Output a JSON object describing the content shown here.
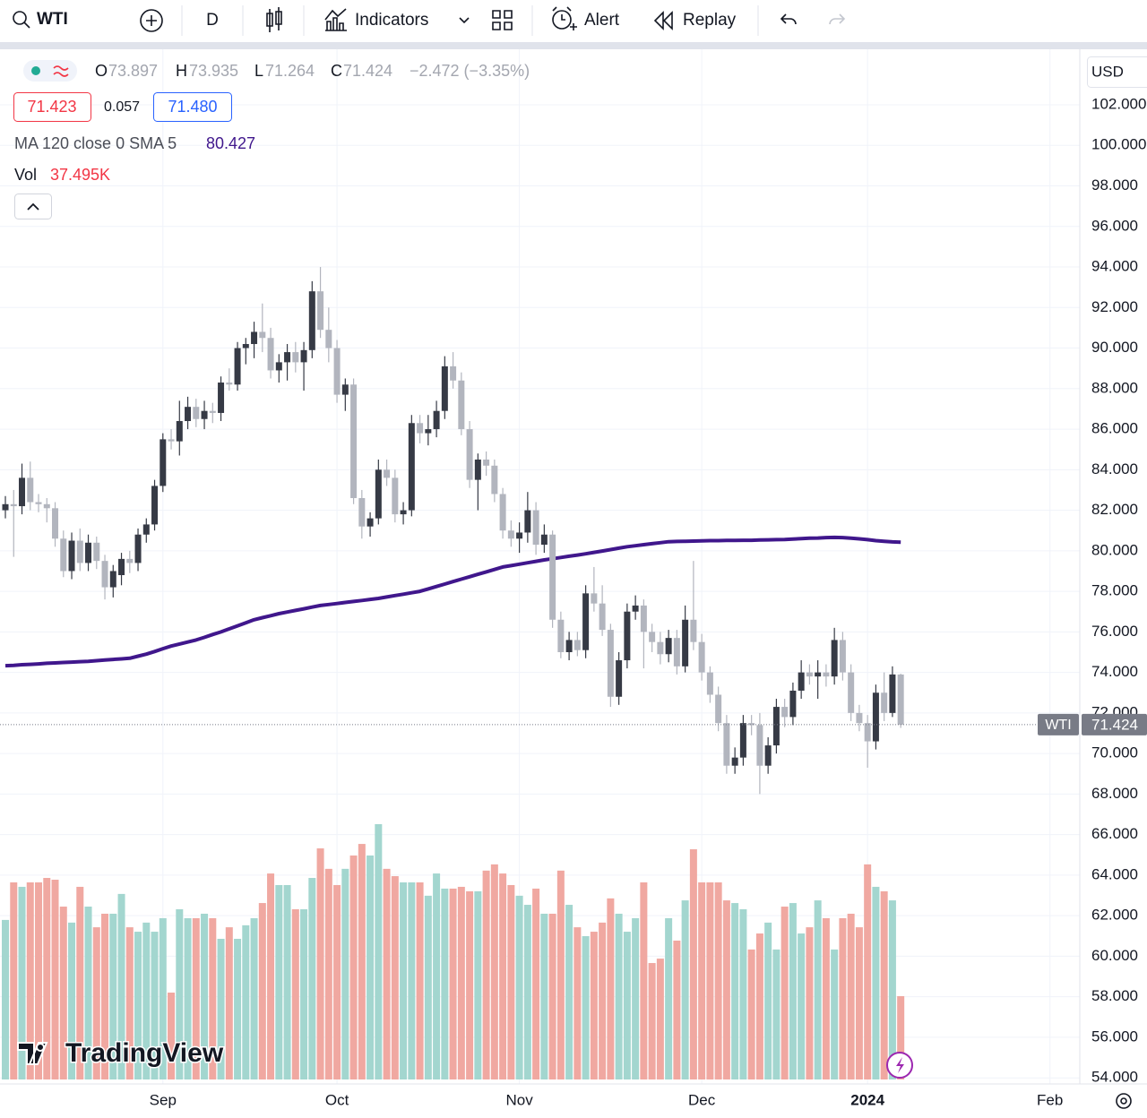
{
  "toolbar": {
    "symbol": "WTI",
    "interval": "D",
    "indicators": "Indicators",
    "alert": "Alert",
    "replay": "Replay"
  },
  "chart_data": {
    "type": "candlestick",
    "legend": {
      "o": "O",
      "h": "H",
      "l": "L",
      "c": "C",
      "change": "−2.472 (−3.35%)"
    },
    "quote": {
      "bid": "71.423",
      "spread": "0.057",
      "ask": "71.480"
    },
    "currency": "USD",
    "symbol_label": "WTI",
    "watermark": "TradingView",
    "up_color": "#363a45",
    "down_color": "#b2b5be",
    "volume_up_color": "#a3d6cf",
    "volume_down_color": "#f0a8a1",
    "grid": true,
    "xlim": [
      -0.65,
      129.6
    ],
    "xticks": [
      {
        "value": 19,
        "label": "Sep"
      },
      {
        "value": 40,
        "label": "Oct"
      },
      {
        "value": 62,
        "label": "Nov"
      },
      {
        "value": 84,
        "label": "Dec"
      },
      {
        "value": 104,
        "label": "2024"
      },
      {
        "value": 126,
        "label": "Feb"
      }
    ],
    "ylim": [
      53.92,
      104.74
    ],
    "yticks": [
      {
        "value": 54,
        "label": "54.000"
      },
      {
        "value": 56,
        "label": "56.000"
      },
      {
        "value": 58,
        "label": "58.000"
      },
      {
        "value": 60,
        "label": "60.000"
      },
      {
        "value": 62,
        "label": "62.000"
      },
      {
        "value": 64,
        "label": "64.000"
      },
      {
        "value": 66,
        "label": "66.000"
      },
      {
        "value": 68,
        "label": "68.000"
      },
      {
        "value": 70,
        "label": "70.000"
      },
      {
        "value": 72,
        "label": "72.000"
      },
      {
        "value": 74,
        "label": "74.000"
      },
      {
        "value": 76,
        "label": "76.000"
      },
      {
        "value": 78,
        "label": "78.000"
      },
      {
        "value": 80,
        "label": "80.000"
      },
      {
        "value": 82,
        "label": "82.000"
      },
      {
        "value": 84,
        "label": "84.000"
      },
      {
        "value": 86,
        "label": "86.000"
      },
      {
        "value": 88,
        "label": "88.000"
      },
      {
        "value": 90,
        "label": "90.000"
      },
      {
        "value": 92,
        "label": "92.000"
      },
      {
        "value": 94,
        "label": "94.000"
      },
      {
        "value": 96,
        "label": "96.000"
      },
      {
        "value": 98,
        "label": "98.000"
      },
      {
        "value": 100,
        "label": "100.000"
      },
      {
        "value": 102,
        "label": "102.000"
      }
    ],
    "ohlc": [
      [
        82.0,
        82.7,
        81.6,
        82.3
      ],
      [
        82.3,
        83.0,
        79.7,
        82.2
      ],
      [
        82.2,
        84.3,
        81.8,
        83.6
      ],
      [
        83.6,
        84.4,
        82.0,
        82.4
      ],
      [
        82.4,
        82.8,
        81.9,
        82.3
      ],
      [
        82.3,
        82.6,
        81.4,
        82.1
      ],
      [
        82.1,
        82.4,
        80.2,
        80.6
      ],
      [
        80.6,
        81.0,
        78.7,
        79.0
      ],
      [
        79.0,
        80.9,
        78.6,
        80.5
      ],
      [
        80.5,
        81.1,
        79.0,
        79.4
      ],
      [
        79.4,
        80.8,
        79.0,
        80.4
      ],
      [
        80.4,
        80.7,
        79.1,
        79.5
      ],
      [
        79.5,
        79.8,
        77.6,
        78.2
      ],
      [
        78.2,
        79.3,
        77.7,
        79.0
      ],
      [
        78.8,
        79.9,
        78.3,
        79.6
      ],
      [
        79.6,
        80.0,
        78.9,
        79.4
      ],
      [
        79.4,
        81.1,
        79.0,
        80.8
      ],
      [
        80.8,
        81.6,
        80.4,
        81.3
      ],
      [
        81.3,
        83.5,
        81.0,
        83.2
      ],
      [
        83.2,
        85.8,
        82.9,
        85.5
      ],
      [
        85.5,
        86.0,
        85.0,
        85.4
      ],
      [
        85.4,
        87.4,
        84.7,
        86.4
      ],
      [
        86.4,
        87.6,
        86.0,
        87.1
      ],
      [
        87.1,
        87.5,
        86.1,
        86.5
      ],
      [
        86.5,
        87.4,
        86.0,
        86.9
      ],
      [
        86.9,
        87.3,
        86.3,
        86.8
      ],
      [
        86.8,
        88.6,
        86.4,
        88.3
      ],
      [
        88.3,
        89.0,
        87.9,
        88.2
      ],
      [
        88.2,
        90.3,
        87.9,
        90.0
      ],
      [
        90.0,
        90.5,
        89.2,
        90.2
      ],
      [
        90.2,
        91.3,
        89.5,
        90.8
      ],
      [
        90.8,
        92.2,
        89.8,
        90.5
      ],
      [
        90.5,
        91.0,
        88.5,
        88.9
      ],
      [
        88.9,
        89.7,
        88.3,
        89.3
      ],
      [
        89.3,
        90.2,
        88.4,
        89.8
      ],
      [
        89.8,
        90.3,
        88.8,
        89.3
      ],
      [
        89.3,
        90.3,
        87.9,
        89.9
      ],
      [
        89.9,
        93.3,
        89.5,
        92.8
      ],
      [
        92.8,
        94.0,
        90.5,
        90.9
      ],
      [
        90.9,
        92.0,
        89.3,
        90.0
      ],
      [
        90.0,
        90.4,
        87.3,
        87.7
      ],
      [
        87.7,
        88.5,
        86.9,
        88.2
      ],
      [
        88.2,
        88.5,
        82.3,
        82.6
      ],
      [
        82.6,
        83.0,
        80.6,
        81.2
      ],
      [
        81.2,
        81.9,
        80.7,
        81.6
      ],
      [
        81.6,
        84.5,
        81.3,
        84.0
      ],
      [
        84.0,
        84.5,
        83.2,
        83.6
      ],
      [
        83.6,
        84.0,
        81.4,
        81.8
      ],
      [
        81.8,
        82.4,
        81.3,
        82.0
      ],
      [
        82.0,
        86.7,
        81.7,
        86.3
      ],
      [
        86.3,
        86.7,
        85.3,
        85.8
      ],
      [
        85.8,
        86.7,
        85.2,
        86.0
      ],
      [
        86.0,
        87.4,
        85.6,
        86.9
      ],
      [
        86.9,
        89.6,
        86.5,
        89.1
      ],
      [
        89.1,
        89.8,
        88.0,
        88.4
      ],
      [
        88.4,
        88.8,
        85.7,
        86.0
      ],
      [
        86.0,
        86.4,
        83.1,
        83.5
      ],
      [
        83.5,
        84.8,
        82.0,
        84.5
      ],
      [
        84.5,
        84.9,
        83.7,
        84.2
      ],
      [
        84.2,
        84.5,
        82.4,
        82.8
      ],
      [
        82.8,
        83.1,
        80.6,
        81.0
      ],
      [
        81.0,
        81.5,
        80.2,
        80.6
      ],
      [
        80.6,
        81.4,
        79.9,
        80.9
      ],
      [
        80.9,
        82.9,
        80.4,
        82.0
      ],
      [
        82.0,
        82.4,
        79.8,
        80.3
      ],
      [
        80.3,
        81.3,
        79.9,
        80.8
      ],
      [
        80.8,
        81.0,
        76.2,
        76.6
      ],
      [
        76.6,
        77.0,
        74.7,
        75.0
      ],
      [
        75.0,
        76.0,
        74.6,
        75.6
      ],
      [
        75.6,
        76.0,
        74.8,
        75.1
      ],
      [
        75.1,
        78.3,
        74.7,
        77.9
      ],
      [
        77.9,
        79.2,
        77.0,
        77.4
      ],
      [
        77.4,
        78.3,
        75.8,
        76.1
      ],
      [
        76.1,
        76.4,
        72.3,
        72.8
      ],
      [
        72.8,
        75.0,
        72.4,
        74.6
      ],
      [
        74.6,
        77.4,
        74.2,
        77.0
      ],
      [
        77.0,
        77.8,
        76.6,
        77.3
      ],
      [
        77.3,
        77.6,
        74.2,
        76.0
      ],
      [
        76.0,
        76.4,
        75.0,
        75.5
      ],
      [
        75.5,
        76.0,
        74.4,
        74.9
      ],
      [
        74.9,
        76.1,
        74.5,
        75.7
      ],
      [
        75.7,
        76.1,
        73.9,
        74.3
      ],
      [
        74.3,
        77.3,
        74.0,
        76.6
      ],
      [
        76.6,
        79.5,
        75.1,
        75.5
      ],
      [
        75.5,
        75.9,
        73.6,
        74.0
      ],
      [
        74.0,
        74.3,
        72.5,
        72.9
      ],
      [
        72.9,
        73.3,
        71.1,
        71.5
      ],
      [
        71.5,
        71.9,
        69.0,
        69.4
      ],
      [
        69.4,
        70.3,
        69.0,
        69.8
      ],
      [
        69.8,
        71.9,
        69.4,
        71.5
      ],
      [
        71.5,
        71.9,
        70.9,
        71.4
      ],
      [
        71.4,
        72.0,
        68.0,
        69.4
      ],
      [
        69.4,
        70.8,
        69.0,
        70.4
      ],
      [
        70.4,
        72.7,
        70.0,
        72.3
      ],
      [
        72.3,
        72.7,
        71.3,
        71.8
      ],
      [
        71.8,
        73.5,
        71.4,
        73.1
      ],
      [
        73.1,
        74.6,
        72.7,
        74.0
      ],
      [
        74.0,
        74.4,
        73.4,
        73.8
      ],
      [
        73.8,
        74.6,
        72.7,
        74.0
      ],
      [
        74.0,
        74.4,
        73.3,
        73.8
      ],
      [
        73.8,
        76.2,
        73.4,
        75.6
      ],
      [
        75.6,
        76.0,
        73.6,
        74.0
      ],
      [
        74.0,
        74.4,
        71.6,
        72.0
      ],
      [
        72.0,
        72.4,
        71.1,
        71.5
      ],
      [
        71.5,
        71.9,
        69.3,
        70.6
      ],
      [
        70.6,
        73.4,
        70.2,
        73.0
      ],
      [
        73.0,
        74.0,
        71.6,
        72.0
      ],
      [
        72.0,
        74.3,
        71.8,
        73.9
      ],
      [
        73.897,
        73.935,
        71.264,
        71.424
      ]
    ],
    "volume": {
      "name": "Vol",
      "label": "37.495K",
      "values": [
        71.8,
        88.7,
        86.7,
        88.7,
        88.7,
        90.7,
        89.9,
        77.8,
        70.6,
        86.7,
        77.8,
        68.5,
        74.6,
        74.6,
        83.5,
        68.5,
        66.5,
        70.6,
        66.5,
        72.6,
        39.1,
        76.6,
        72.6,
        72.6,
        74.6,
        72.6,
        63.3,
        68.5,
        63.3,
        69.4,
        72.6,
        79.4,
        92.7,
        87.5,
        87.5,
        76.6,
        76.6,
        90.7,
        104,
        94.8,
        87.5,
        94.8,
        100.8,
        106,
        100.8,
        114.9,
        94.8,
        91.5,
        88.7,
        88.7,
        88.7,
        82.7,
        92.7,
        85.9,
        85.9,
        86.7,
        84.7,
        84.7,
        94,
        96.8,
        92.7,
        87.5,
        82.7,
        78.6,
        85.9,
        74.6,
        74.6,
        94,
        78.6,
        68.5,
        64.5,
        66.5,
        70.6,
        81.5,
        74.6,
        66.5,
        72.6,
        88.7,
        52.4,
        54.4,
        72.6,
        62.5,
        80.6,
        103.6,
        88.7,
        88.7,
        88.7,
        80.6,
        79.4,
        76.6,
        58.5,
        65.7,
        70.6,
        58.5,
        77.8,
        79.4,
        65.7,
        68.5,
        80.6,
        72.6,
        58.5,
        72.6,
        74.6,
        68.5,
        96.8,
        86.7,
        84.7,
        80.6,
        37.495
      ]
    },
    "ma": {
      "name": "MA 120 close 0 SMA 5",
      "color": "#40178c",
      "values": [
        74.33,
        74.35,
        74.38,
        74.4,
        74.42,
        74.45,
        74.47,
        74.49,
        74.51,
        74.53,
        74.55,
        74.58,
        74.61,
        74.64,
        74.67,
        74.7,
        74.8,
        74.9,
        75.03,
        75.17,
        75.3,
        75.4,
        75.5,
        75.6,
        75.73,
        75.87,
        76.0,
        76.15,
        76.3,
        76.45,
        76.6,
        76.7,
        76.8,
        76.9,
        76.98,
        77.06,
        77.14,
        77.22,
        77.3,
        77.35,
        77.4,
        77.45,
        77.5,
        77.55,
        77.6,
        77.65,
        77.72,
        77.79,
        77.86,
        77.93,
        78.0,
        78.12,
        78.24,
        78.36,
        78.48,
        78.6,
        78.72,
        78.84,
        78.96,
        79.08,
        79.2,
        79.27,
        79.34,
        79.41,
        79.48,
        79.55,
        79.61,
        79.67,
        79.73,
        79.79,
        79.85,
        79.92,
        79.99,
        80.06,
        80.13,
        80.2,
        80.25,
        80.3,
        80.35,
        80.4,
        80.45,
        80.46,
        80.47,
        80.48,
        80.49,
        80.5,
        80.5,
        80.51,
        80.51,
        80.52,
        80.52,
        80.53,
        80.54,
        80.55,
        80.56,
        80.58,
        80.6,
        80.62,
        80.63,
        80.65,
        80.66,
        80.65,
        80.62,
        80.59,
        80.55,
        80.5,
        80.47,
        80.44,
        80.427
      ]
    }
  }
}
